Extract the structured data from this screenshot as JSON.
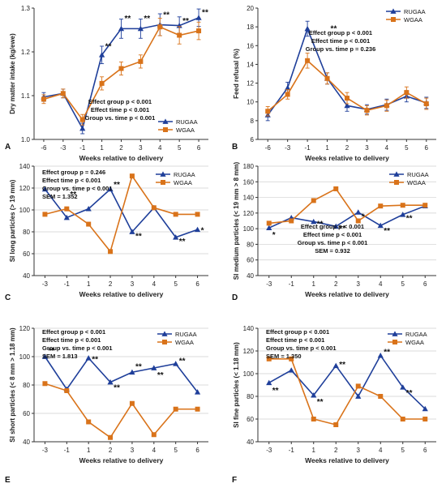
{
  "colors": {
    "rugaa": "#1f3f9a",
    "wgaa": "#d9731a",
    "axis": "#333333",
    "grid": "#cfcfcf"
  },
  "legend_names": [
    "RUGAA",
    "WGAA"
  ],
  "chart_data": [
    {
      "id": "A",
      "type": "line",
      "panel_label": "A",
      "xlabel": "Weeks relative to delivery",
      "ylabel": "Dry matter intake (kg/ewe)",
      "x": [
        -6,
        -3,
        -1,
        1,
        2,
        3,
        4,
        5,
        6
      ],
      "x_ticks": [
        "-6",
        "-3",
        "-1",
        "1",
        "2",
        "3",
        "4",
        "5",
        "6"
      ],
      "ylim": [
        1.0,
        1.3
      ],
      "y_ticks": [
        "1.0",
        "1.1",
        "1.2",
        "1.3"
      ],
      "grid": false,
      "error_bars": true,
      "legend_placement": "bottom-right",
      "series": [
        {
          "name": "RUGAA",
          "values": [
            1.097,
            1.105,
            1.025,
            1.193,
            1.253,
            1.253,
            1.262,
            1.26,
            1.278
          ],
          "err": [
            0.01,
            0.01,
            0.012,
            0.02,
            0.022,
            0.022,
            0.025,
            0.02,
            0.02
          ]
        },
        {
          "name": "WGAA",
          "values": [
            1.092,
            1.105,
            1.045,
            1.128,
            1.162,
            1.178,
            1.257,
            1.238,
            1.248
          ],
          "err": [
            0.01,
            0.01,
            0.012,
            0.015,
            0.015,
            0.015,
            0.02,
            0.02,
            0.02
          ]
        }
      ],
      "significance": [
        {
          "x": 1,
          "text": "**",
          "y": 1.212
        },
        {
          "x": 2,
          "text": "**",
          "y": 1.276
        },
        {
          "x": 3,
          "text": "**",
          "y": 1.276
        },
        {
          "x": 4,
          "text": "**",
          "y": 1.284
        },
        {
          "x": 5,
          "text": "**",
          "y": 1.27
        },
        {
          "x": 6,
          "text": "**",
          "y": 1.29
        }
      ],
      "stats": [
        "Effect group p < 0.001",
        "Effect time p < 0.001",
        "Group vs. time p < 0.001"
      ],
      "stats_placement": "bottom-right"
    },
    {
      "id": "B",
      "type": "line",
      "panel_label": "B",
      "xlabel": "Weeks relative to delivery",
      "ylabel": "Feed refusal (%)",
      "x": [
        -6,
        -3,
        -1,
        1,
        2,
        3,
        4,
        5,
        6
      ],
      "x_ticks": [
        "-6",
        "-3",
        "-1",
        "1",
        "2",
        "3",
        "4",
        "5",
        "6"
      ],
      "ylim": [
        6,
        20
      ],
      "y_ticks": [
        "6",
        "8",
        "10",
        "12",
        "14",
        "16",
        "18",
        "20"
      ],
      "grid": false,
      "error_bars": true,
      "legend_placement": "top-right",
      "series": [
        {
          "name": "RUGAA",
          "values": [
            8.6,
            11.5,
            17.8,
            12.5,
            9.6,
            9.2,
            9.7,
            10.6,
            9.9
          ],
          "err": [
            0.6,
            0.6,
            0.8,
            0.6,
            0.6,
            0.5,
            0.6,
            0.6,
            0.6
          ]
        },
        {
          "name": "WGAA",
          "values": [
            9.0,
            10.8,
            14.4,
            12.5,
            10.4,
            9.1,
            9.6,
            11.0,
            9.8
          ],
          "err": [
            0.5,
            0.5,
            0.8,
            0.6,
            0.6,
            0.5,
            0.6,
            0.6,
            0.6
          ]
        }
      ],
      "significance": [
        {
          "x": 1,
          "text": "**",
          "y": 17.8
        }
      ],
      "stats": [
        "Effect group p < 0.001",
        "Effect time p < 0.001",
        "Group vs. time p = 0.236"
      ],
      "stats_placement": "top-right"
    },
    {
      "id": "C",
      "type": "line",
      "panel_label": "C",
      "xlabel": "Weeks relative to delivery",
      "ylabel": "SI long particles (> 19 mm)",
      "x": [
        -3,
        -1,
        1,
        2,
        3,
        4,
        5,
        6
      ],
      "x_ticks": [
        "-3",
        "-1",
        "1",
        "2",
        "3",
        "4",
        "5",
        "6"
      ],
      "ylim": [
        40,
        140
      ],
      "y_ticks": [
        "40",
        "60",
        "80",
        "100",
        "120",
        "140"
      ],
      "grid": true,
      "error_bars": false,
      "legend_placement": "top-right",
      "series": [
        {
          "name": "RUGAA",
          "values": [
            119,
            93,
            101,
            119,
            80,
            102,
            75,
            82
          ]
        },
        {
          "name": "WGAA",
          "values": [
            96,
            101,
            87,
            62,
            131,
            102,
            96,
            96
          ]
        }
      ],
      "significance": [
        {
          "x": -1,
          "text": "**",
          "y": 114
        },
        {
          "x": 2,
          "text": "**",
          "y": 123
        },
        {
          "x": 3,
          "text": "**",
          "y": 76
        },
        {
          "x": 5,
          "text": "**",
          "y": 71
        },
        {
          "x": 6,
          "text": "*",
          "y": 81
        }
      ],
      "stats": [
        "Effect group p = 0.246",
        "Effect time p < 0.001",
        "Group vs. time p < 0.001",
        "SEM = 1.352"
      ],
      "stats_placement": "top-left"
    },
    {
      "id": "D",
      "type": "line",
      "panel_label": "D",
      "xlabel": "Weeks relative to delivery",
      "ylabel": "SI medium particles (< 19 mm > 8 mm)",
      "x": [
        -3,
        -1,
        1,
        2,
        3,
        4,
        5,
        6
      ],
      "x_ticks": [
        "-3",
        "-1",
        "1",
        "2",
        "3",
        "4",
        "5",
        "6"
      ],
      "ylim": [
        40,
        180
      ],
      "y_ticks": [
        "40",
        "60",
        "80",
        "100",
        "120",
        "140",
        "160",
        "180"
      ],
      "grid": true,
      "error_bars": false,
      "legend_placement": "top-right",
      "series": [
        {
          "name": "RUGAA",
          "values": [
            101,
            114,
            109,
            103,
            121,
            104,
            118,
            129
          ]
        },
        {
          "name": "WGAA",
          "values": [
            107,
            110,
            136,
            151,
            110,
            129,
            130,
            130
          ]
        }
      ],
      "significance": [
        {
          "x": -3,
          "text": "*",
          "y": 92
        },
        {
          "x": 1,
          "text": "**",
          "y": 106
        },
        {
          "x": 2,
          "text": "**",
          "y": 100
        },
        {
          "x": 3,
          "text": "*",
          "y": 115
        },
        {
          "x": 4,
          "text": "**",
          "y": 97
        },
        {
          "x": 5,
          "text": "**",
          "y": 113
        }
      ],
      "stats": [
        "Effect group p < 0.001",
        "Effect time p < 0.001",
        "Group vs. time p < 0.001",
        "SEM = 0.932"
      ],
      "stats_placement": "bottom-right"
    },
    {
      "id": "E",
      "type": "line",
      "panel_label": "E",
      "xlabel": "Weeks relative to delivery",
      "ylabel": "SI short particles (< 8 mm > 1.18 mm)",
      "x": [
        -3,
        -1,
        1,
        2,
        3,
        4,
        5,
        6
      ],
      "x_ticks": [
        "-3",
        "-1",
        "1",
        "2",
        "3",
        "4",
        "5",
        "6"
      ],
      "ylim": [
        40,
        120
      ],
      "y_ticks": [
        "40",
        "60",
        "80",
        "100",
        "120"
      ],
      "grid": true,
      "error_bars": false,
      "legend_placement": "top-right",
      "series": [
        {
          "name": "RUGAA",
          "values": [
            100,
            77,
            99,
            82,
            89,
            92,
            95,
            75
          ]
        },
        {
          "name": "WGAA",
          "values": [
            81,
            76,
            54,
            43,
            67,
            45,
            63,
            63
          ]
        }
      ],
      "significance": [
        {
          "x": -3,
          "text": "**",
          "y": 104
        },
        {
          "x": 1,
          "text": "**",
          "y": 98
        },
        {
          "x": 2,
          "text": "**",
          "y": 78
        },
        {
          "x": 3,
          "text": "**",
          "y": 93
        },
        {
          "x": 4,
          "text": "**",
          "y": 87
        },
        {
          "x": 5,
          "text": "**",
          "y": 97
        }
      ],
      "stats": [
        "Effect group p < 0.001",
        "Effect time p < 0.001",
        "Group vs. time p < 0.001",
        "SEM = 1.813"
      ],
      "stats_placement": "top-left"
    },
    {
      "id": "F",
      "type": "line",
      "panel_label": "F",
      "xlabel": "Weeks relative to delivery",
      "ylabel": "SI fine particles (< 1.18 mm)",
      "x": [
        -3,
        -1,
        1,
        2,
        3,
        4,
        5,
        6
      ],
      "x_ticks": [
        "-3",
        "-1",
        "1",
        "2",
        "3",
        "4",
        "5",
        "6"
      ],
      "ylim": [
        40,
        140
      ],
      "y_ticks": [
        "40",
        "60",
        "80",
        "100",
        "120",
        "140"
      ],
      "grid": true,
      "error_bars": false,
      "legend_placement": "top-right",
      "series": [
        {
          "name": "RUGAA",
          "values": [
            92,
            103,
            81,
            107,
            80,
            116,
            88,
            69
          ]
        },
        {
          "name": "WGAA",
          "values": [
            113,
            113,
            60,
            55,
            89,
            80,
            60,
            60
          ]
        }
      ],
      "significance": [
        {
          "x": -3,
          "text": "**",
          "y": 85
        },
        {
          "x": 1,
          "text": "**",
          "y": 75
        },
        {
          "x": 2,
          "text": "**",
          "y": 108
        },
        {
          "x": 4,
          "text": "**",
          "y": 119
        },
        {
          "x": 5,
          "text": "**",
          "y": 83
        }
      ],
      "stats": [
        "Effect group p < 0.001",
        "Effect time p < 0.001",
        "Group vs. time p < 0.001",
        "SEM = 1.350"
      ],
      "stats_placement": "top-left"
    }
  ]
}
